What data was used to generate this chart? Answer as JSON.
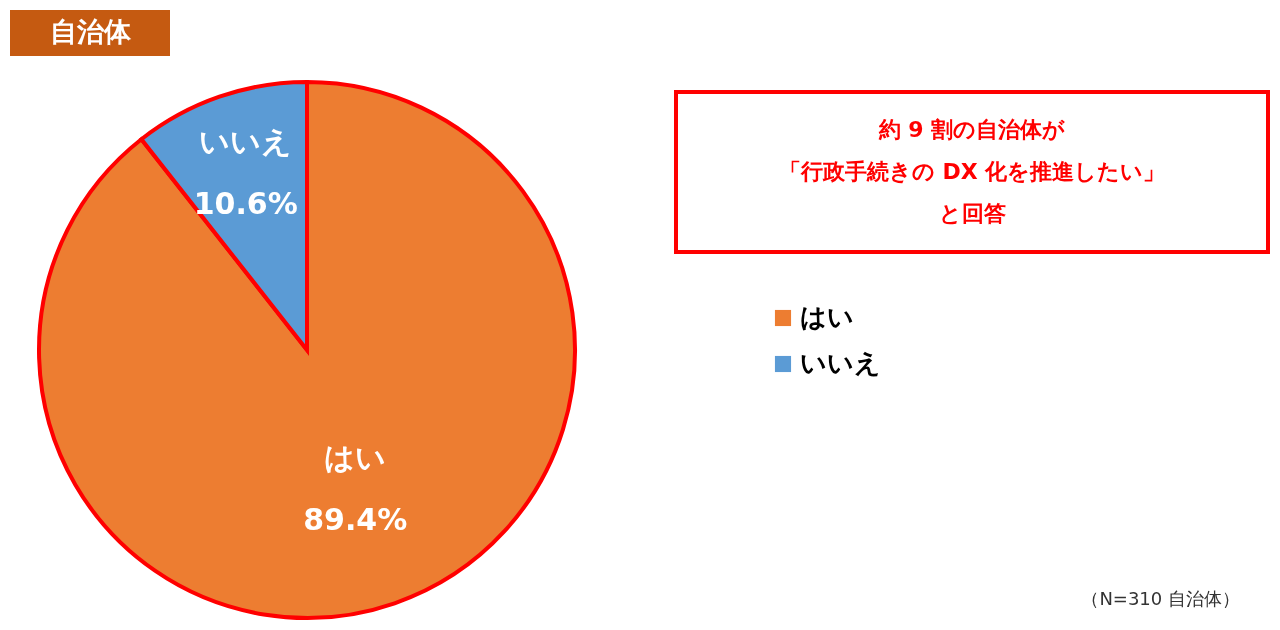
{
  "chart_data": {
    "type": "pie",
    "title": "自治体",
    "categories": [
      "はい",
      "いいえ"
    ],
    "values": [
      89.4,
      10.6
    ],
    "colors": [
      "#ed7d31",
      "#5b9bd5"
    ],
    "value_labels": [
      "89.4%",
      "10.6%"
    ],
    "legend": "right",
    "annotations": [
      "約 9 割の自治体が",
      "「行政手続きの DX 化を推進したい」",
      "と回答",
      "（N=310 自治体）"
    ]
  }
}
